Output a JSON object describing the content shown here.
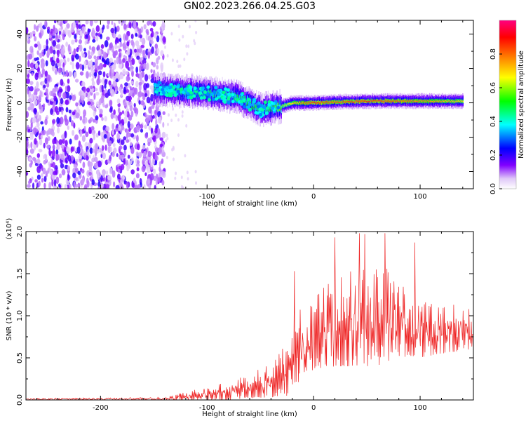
{
  "title": "GN02.2023.266.04.25.G03",
  "chart_data": [
    {
      "type": "heatmap",
      "xlabel": "Height of straight line (km)",
      "ylabel": "Frequency (Hz)",
      "xlim": [
        -270,
        150
      ],
      "ylim": [
        -50,
        48
      ],
      "x_ticks": [
        -200,
        -100,
        0,
        100
      ],
      "x_tick_labels": [
        "-200",
        "-100",
        "0",
        "100"
      ],
      "y_ticks": [
        -40,
        -20,
        0,
        20,
        40
      ],
      "y_tick_labels": [
        "-40",
        "-20",
        "0",
        "20",
        "40"
      ],
      "colorbar": {
        "label": "Normalized spectral amplitude",
        "range": [
          0,
          1
        ],
        "ticks": [
          0.0,
          0.2,
          0.4,
          0.6,
          0.8
        ],
        "tick_labels": [
          "0.0",
          "0.2",
          "0.4",
          "0.6",
          "0.8"
        ],
        "colors": [
          "#ffffff",
          "#e0c8f8",
          "#8000ff",
          "#0000ff",
          "#00ffff",
          "#00ff00",
          "#ffff00",
          "#ff8000",
          "#ff0000",
          "#ff0080"
        ]
      },
      "description_points": {
        "noise_region_x": [
          -270,
          -140
        ],
        "signal_trend": [
          {
            "x": -150,
            "freq": 8,
            "amp": 0.45
          },
          {
            "x": -130,
            "freq": 7,
            "amp": 0.45
          },
          {
            "x": -110,
            "freq": 6,
            "amp": 0.45
          },
          {
            "x": -90,
            "freq": 5,
            "amp": 0.45
          },
          {
            "x": -70,
            "freq": 3,
            "amp": 0.5
          },
          {
            "x": -50,
            "freq": -4,
            "amp": 0.5
          },
          {
            "x": -40,
            "freq": -3,
            "amp": 0.5
          },
          {
            "x": -30,
            "freq": -2,
            "amp": 0.6
          },
          {
            "x": -20,
            "freq": 0,
            "amp": 0.7
          },
          {
            "x": 0,
            "freq": 0,
            "amp": 0.85
          },
          {
            "x": 20,
            "freq": 0.5,
            "amp": 0.8
          },
          {
            "x": 50,
            "freq": 1,
            "amp": 0.85
          },
          {
            "x": 80,
            "freq": 1,
            "amp": 0.8
          },
          {
            "x": 110,
            "freq": 1,
            "amp": 0.75
          },
          {
            "x": 140,
            "freq": 1,
            "amp": 0.7
          }
        ]
      }
    },
    {
      "type": "line",
      "xlabel": "Height of straight line (km)",
      "ylabel": "SNR (10 * v/v)",
      "y_multiplier": "(x10⁴)",
      "xlim": [
        -270,
        150
      ],
      "ylim": [
        0,
        2.0
      ],
      "x_ticks": [
        -200,
        -100,
        0,
        100
      ],
      "x_tick_labels": [
        "-200",
        "-100",
        "0",
        "100"
      ],
      "y_ticks": [
        0.0,
        0.5,
        1.0,
        1.5,
        2.0
      ],
      "y_tick_labels": [
        "0.0",
        "0.5",
        "1.0",
        "1.5",
        "2.0"
      ],
      "series": [
        {
          "color": "#ee2222",
          "envelope": [
            {
              "x": -270,
              "lo": 0.0,
              "hi": 0.02
            },
            {
              "x": -140,
              "lo": 0.0,
              "hi": 0.03
            },
            {
              "x": -120,
              "lo": 0.0,
              "hi": 0.1
            },
            {
              "x": -100,
              "lo": 0.0,
              "hi": 0.15
            },
            {
              "x": -80,
              "lo": 0.0,
              "hi": 0.22
            },
            {
              "x": -60,
              "lo": 0.02,
              "hi": 0.3
            },
            {
              "x": -40,
              "lo": 0.03,
              "hi": 0.45
            },
            {
              "x": -25,
              "lo": 0.05,
              "hi": 0.7
            },
            {
              "x": -15,
              "lo": 0.2,
              "hi": 1.05
            },
            {
              "x": 0,
              "lo": 0.35,
              "hi": 1.2
            },
            {
              "x": 20,
              "lo": 0.4,
              "hi": 1.5
            },
            {
              "x": 40,
              "lo": 0.4,
              "hi": 1.6
            },
            {
              "x": 60,
              "lo": 0.4,
              "hi": 1.7
            },
            {
              "x": 80,
              "lo": 0.5,
              "hi": 1.45
            },
            {
              "x": 100,
              "lo": 0.5,
              "hi": 1.25
            },
            {
              "x": 120,
              "lo": 0.55,
              "hi": 1.15
            },
            {
              "x": 150,
              "lo": 0.6,
              "hi": 1.1
            }
          ],
          "peaks": [
            {
              "x": -18,
              "y": 1.53
            },
            {
              "x": 20,
              "y": 1.93
            },
            {
              "x": 43,
              "y": 1.98
            },
            {
              "x": 48,
              "y": 1.97
            },
            {
              "x": 67,
              "y": 1.98
            },
            {
              "x": 95,
              "y": 1.87
            }
          ]
        }
      ]
    }
  ]
}
